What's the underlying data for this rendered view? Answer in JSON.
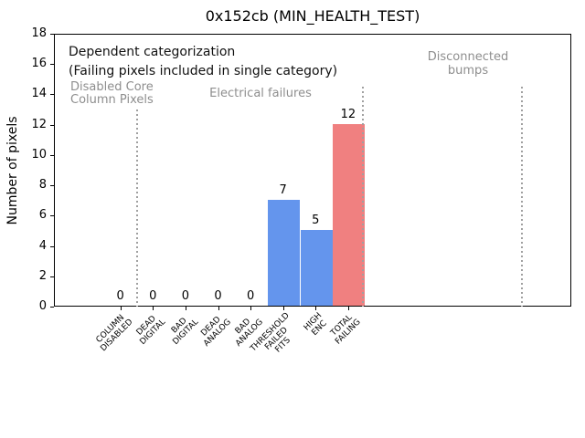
{
  "title": "0x152cb (MIN_HEALTH_TEST)",
  "colors": {
    "bar_blue": "#6495ed",
    "bar_red": "#f08080",
    "gray_text": "#8e8e8e",
    "separator": "#a0a0a0",
    "axis": "#000000"
  },
  "annotations": {
    "dependent_line1": "Dependent categorization",
    "dependent_line2": "(Failing pixels included in single category)",
    "group_disabled": "Disabled Core\nColumn Pixels",
    "group_electrical": "Electrical failures",
    "group_bumps": "Disconnected\nbumps"
  },
  "chart_data": {
    "type": "bar",
    "title": "0x152cb (MIN_HEALTH_TEST)",
    "xlabel": "",
    "ylabel": "Number of pixels",
    "ylim": [
      0,
      18
    ],
    "ytick_step": 2,
    "grid": false,
    "legend": null,
    "categories": [
      [
        "COLUMN",
        "DISABLED"
      ],
      [
        "DEAD",
        "DIGITAL"
      ],
      [
        "BAD",
        "DIGITAL"
      ],
      [
        "DEAD",
        "ANALOG"
      ],
      [
        "BAD",
        "ANALOG"
      ],
      [
        "THRESHOLD",
        "FAILED",
        "FITS"
      ],
      [
        "HIGH",
        "ENC"
      ],
      [
        "TOTAL",
        "FAILING"
      ]
    ],
    "values": [
      0,
      0,
      0,
      0,
      0,
      7,
      5,
      12
    ],
    "value_labels": [
      "0",
      "0",
      "0",
      "0",
      "0",
      "7",
      "5",
      "12"
    ],
    "bar_colors": [
      "#6495ed",
      "#6495ed",
      "#6495ed",
      "#6495ed",
      "#6495ed",
      "#6495ed",
      "#6495ed",
      "#f08080"
    ],
    "separators": [
      {
        "x_category": 0.5,
        "y_top": 13
      },
      {
        "x_category": 7.45,
        "y_top": 14.5
      },
      {
        "x_category": 12.35,
        "y_top": 14.5
      }
    ]
  }
}
